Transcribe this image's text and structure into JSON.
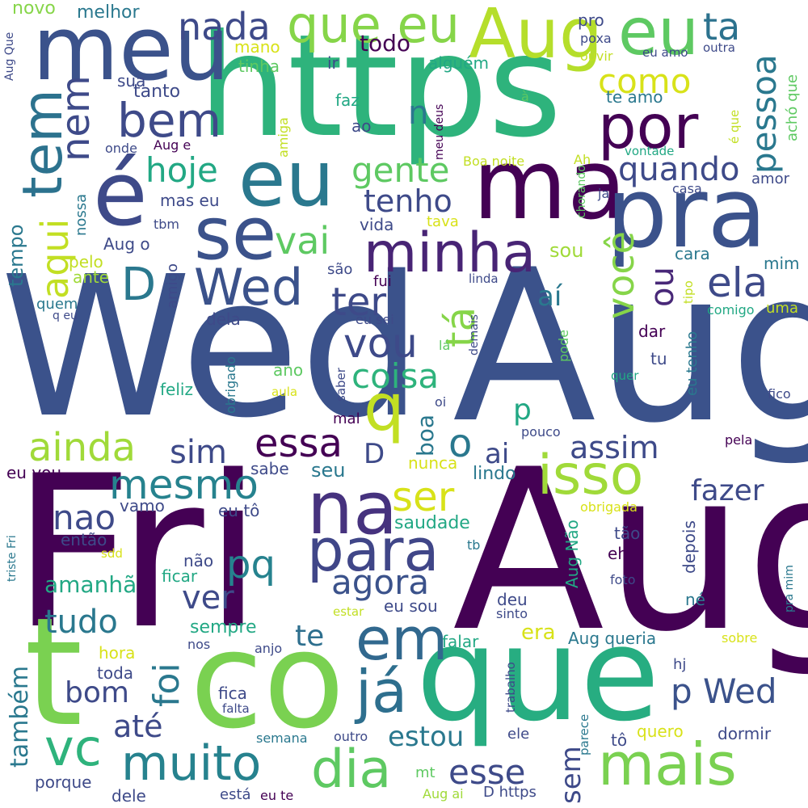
{
  "words": [
    {
      "text": "Wed",
      "color": "#3b528b"
    },
    {
      "text": "Aug",
      "color": "#3b528b"
    },
    {
      "text": "Fri",
      "color": "#440154"
    },
    {
      "text": "Aug",
      "color": "#440154"
    },
    {
      "text": "https",
      "color": "#2eb37c"
    },
    {
      "text": "t",
      "color": "#7ad151"
    },
    {
      "text": "co",
      "color": "#7ad151"
    },
    {
      "text": "que",
      "color": "#27ad81"
    },
    {
      "text": "meu",
      "color": "#3b528b"
    },
    {
      "text": "ma",
      "color": "#440154"
    },
    {
      "text": "pra",
      "color": "#3b528b"
    },
    {
      "text": "é",
      "color": "#3e4a89"
    },
    {
      "text": "eu",
      "color": "#2a788e"
    },
    {
      "text": "Aug",
      "color": "#b5de2b"
    },
    {
      "text": "eu",
      "color": "#5ec962"
    },
    {
      "text": "se",
      "color": "#3b528b"
    },
    {
      "text": "que eu",
      "color": "#86d549"
    },
    {
      "text": "por",
      "color": "#440154"
    },
    {
      "text": "tem",
      "color": "#2c728e"
    },
    {
      "text": "na",
      "color": "#46327e"
    },
    {
      "text": "isso",
      "color": "#a0da39"
    },
    {
      "text": "para",
      "color": "#404688"
    },
    {
      "text": "minha",
      "color": "#482475"
    },
    {
      "text": "Wed",
      "color": "#3b528b"
    },
    {
      "text": "em",
      "color": "#31688e"
    },
    {
      "text": "já",
      "color": "#2e6f8e"
    },
    {
      "text": "mais",
      "color": "#7ad151"
    },
    {
      "text": "muito",
      "color": "#26828e"
    },
    {
      "text": "dia",
      "color": "#5ec962"
    },
    {
      "text": "vc",
      "color": "#2eb37c"
    },
    {
      "text": "q",
      "color": "#c2df23"
    },
    {
      "text": "bem",
      "color": "#3e4a89"
    },
    {
      "text": "nem",
      "color": "#3e4a89"
    },
    {
      "text": "nada",
      "color": "#3e4a89"
    },
    {
      "text": "aqui",
      "color": "#c2df23"
    },
    {
      "text": "ta",
      "color": "#2c728e"
    },
    {
      "text": "pessoa",
      "color": "#2a788e"
    },
    {
      "text": "como",
      "color": "#d8e219"
    },
    {
      "text": "hoje",
      "color": "#22a884"
    },
    {
      "text": "quando",
      "color": "#3e4a89"
    },
    {
      "text": "gente",
      "color": "#5ec962"
    },
    {
      "text": "tenho",
      "color": "#3e4a89"
    },
    {
      "text": "vai",
      "color": "#5ec962"
    },
    {
      "text": "você",
      "color": "#86d549"
    },
    {
      "text": "ela",
      "color": "#3e4a89"
    },
    {
      "text": "D",
      "color": "#2a788e"
    },
    {
      "text": "ter",
      "color": "#3e4a89"
    },
    {
      "text": "tá",
      "color": "#86d549"
    },
    {
      "text": "ou",
      "color": "#482878"
    },
    {
      "text": "vou",
      "color": "#3e4a89"
    },
    {
      "text": "coisa",
      "color": "#2eb37c"
    },
    {
      "text": "ainda",
      "color": "#a0da39"
    },
    {
      "text": "essa",
      "color": "#440154"
    },
    {
      "text": "sim",
      "color": "#3e4a89"
    },
    {
      "text": "o",
      "color": "#2a788e"
    },
    {
      "text": "assim",
      "color": "#3e4a89"
    },
    {
      "text": "mesmo",
      "color": "#26828e"
    },
    {
      "text": "ser",
      "color": "#d8e219"
    },
    {
      "text": "fazer",
      "color": "#3e4a89"
    },
    {
      "text": "nao",
      "color": "#3e4a89"
    },
    {
      "text": "pq",
      "color": "#26828e"
    },
    {
      "text": "agora",
      "color": "#3b528b"
    },
    {
      "text": "ver",
      "color": "#3e4a89"
    },
    {
      "text": "tudo",
      "color": "#2a788e"
    },
    {
      "text": "amanhã",
      "color": "#22a884"
    },
    {
      "text": "foi",
      "color": "#2a788e"
    },
    {
      "text": "te",
      "color": "#2e6f8e"
    },
    {
      "text": "bom",
      "color": "#3e4a89"
    },
    {
      "text": "até",
      "color": "#3e4a89"
    },
    {
      "text": "também",
      "color": "#2a788e"
    },
    {
      "text": "p Wed",
      "color": "#3b528b"
    },
    {
      "text": "estou",
      "color": "#2a788e"
    },
    {
      "text": "esse",
      "color": "#3e4a89"
    },
    {
      "text": "sem",
      "color": "#3e4a89"
    },
    {
      "text": "n",
      "color": "#2a788e"
    },
    {
      "text": "p",
      "color": "#22a884"
    },
    {
      "text": "ai",
      "color": "#3e4a89"
    },
    {
      "text": "aí",
      "color": "#2a788e"
    },
    {
      "text": "boa",
      "color": "#2a788e"
    },
    {
      "text": "D",
      "color": "#3e4a89"
    },
    {
      "text": "todo",
      "color": "#440154"
    },
    {
      "text": "novo",
      "color": "#86d549"
    },
    {
      "text": "melhor",
      "color": "#2a788e"
    },
    {
      "text": "pro",
      "color": "#3e4a89"
    },
    {
      "text": "poxa",
      "color": "#3e4a89"
    },
    {
      "text": "mano",
      "color": "#d8e219"
    },
    {
      "text": "tinha",
      "color": "#5ec962"
    },
    {
      "text": "ir",
      "color": "#3e4a89"
    },
    {
      "text": "alguém",
      "color": "#22a884"
    },
    {
      "text": "ouvir",
      "color": "#c2df23"
    },
    {
      "text": "eu amo",
      "color": "#3e4a89"
    },
    {
      "text": "outra",
      "color": "#3e4a89"
    },
    {
      "text": "Aug Que",
      "color": "#3e4a89"
    },
    {
      "text": "sua",
      "color": "#3e4a89"
    },
    {
      "text": "tanto",
      "color": "#3e4a89"
    },
    {
      "text": "faz",
      "color": "#22a884"
    },
    {
      "text": "te amo",
      "color": "#2a788e"
    },
    {
      "text": "achó que",
      "color": "#5ec962"
    },
    {
      "text": "à",
      "color": "#5ec962"
    },
    {
      "text": "é que",
      "color": "#c2df23"
    },
    {
      "text": "ao",
      "color": "#3e4a89"
    },
    {
      "text": "meu deus",
      "color": "#440154"
    },
    {
      "text": "amiga",
      "color": "#c2df23"
    },
    {
      "text": "onde",
      "color": "#3e4a89"
    },
    {
      "text": "Aug e",
      "color": "#440154"
    },
    {
      "text": "Boa noite",
      "color": "#c2df23"
    },
    {
      "text": "Ah",
      "color": "#c2df23"
    },
    {
      "text": "vontade",
      "color": "#22a884"
    },
    {
      "text": "chorando",
      "color": "#5ec962"
    },
    {
      "text": "amor",
      "color": "#3e4a89"
    },
    {
      "text": "casa",
      "color": "#3e4a89"
    },
    {
      "text": "ja",
      "color": "#3e4a89"
    },
    {
      "text": "mas eu",
      "color": "#3e4a89"
    },
    {
      "text": "tempo",
      "color": "#2a788e"
    },
    {
      "text": "nossa",
      "color": "#2a788e"
    },
    {
      "text": "tbm",
      "color": "#3e4a89"
    },
    {
      "text": "vida",
      "color": "#3e4a89"
    },
    {
      "text": "tava",
      "color": "#d8e219"
    },
    {
      "text": "Aug o",
      "color": "#3e4a89"
    },
    {
      "text": "sou",
      "color": "#a0da39"
    },
    {
      "text": "pelo",
      "color": "#c2df23"
    },
    {
      "text": "amigo",
      "color": "#3e4a89"
    },
    {
      "text": "cara",
      "color": "#2a788e"
    },
    {
      "text": "mim",
      "color": "#2a788e"
    },
    {
      "text": "ante",
      "color": "#a0da39"
    },
    {
      "text": "são",
      "color": "#3e4a89"
    },
    {
      "text": "fui",
      "color": "#440154"
    },
    {
      "text": "linda",
      "color": "#3e4a89"
    },
    {
      "text": "quem",
      "color": "#2a788e"
    },
    {
      "text": "q eu",
      "color": "#3e4a89"
    },
    {
      "text": "tipo",
      "color": "#c2df23"
    },
    {
      "text": "comigo",
      "color": "#22a884"
    },
    {
      "text": "uma",
      "color": "#c2df23"
    },
    {
      "text": "dela",
      "color": "#3e4a89"
    },
    {
      "text": "eu sei",
      "color": "#3e4a89"
    },
    {
      "text": "demais",
      "color": "#3e4a89"
    },
    {
      "text": "pode",
      "color": "#5ec962"
    },
    {
      "text": "obrigado",
      "color": "#2a788e"
    },
    {
      "text": "lá",
      "color": "#5ec962"
    },
    {
      "text": "dar",
      "color": "#440154"
    },
    {
      "text": "tu",
      "color": "#3e4a89"
    },
    {
      "text": "eu tenho",
      "color": "#2a788e"
    },
    {
      "text": "ano",
      "color": "#5ec962"
    },
    {
      "text": "saber",
      "color": "#3e4a89"
    },
    {
      "text": "quer",
      "color": "#22a884"
    },
    {
      "text": "feliz",
      "color": "#22a884"
    },
    {
      "text": "aula",
      "color": "#d8e219"
    },
    {
      "text": "oi",
      "color": "#3e4a89"
    },
    {
      "text": "fico",
      "color": "#3e4a89"
    },
    {
      "text": "mal",
      "color": "#440154"
    },
    {
      "text": "pouco",
      "color": "#3e4a89"
    },
    {
      "text": "pela",
      "color": "#440154"
    },
    {
      "text": "eu vou",
      "color": "#440154"
    },
    {
      "text": "seu",
      "color": "#2a788e"
    },
    {
      "text": "sabe",
      "color": "#3e4a89"
    },
    {
      "text": "nunca",
      "color": "#d8e219"
    },
    {
      "text": "lindo",
      "color": "#2a788e"
    },
    {
      "text": "vamo",
      "color": "#3e4a89"
    },
    {
      "text": "eu tô",
      "color": "#3e4a89"
    },
    {
      "text": "saudade",
      "color": "#22a884"
    },
    {
      "text": "obrigada",
      "color": "#d8e219"
    },
    {
      "text": "depois",
      "color": "#3e4a89"
    },
    {
      "text": "então",
      "color": "#3e4a89"
    },
    {
      "text": "Aug Não",
      "color": "#22a884"
    },
    {
      "text": "tão",
      "color": "#3e4a89"
    },
    {
      "text": "triste Fri",
      "color": "#2a788e"
    },
    {
      "text": "sdd",
      "color": "#d8e219"
    },
    {
      "text": "tb",
      "color": "#2a788e"
    },
    {
      "text": "eh",
      "color": "#440154"
    },
    {
      "text": "pra mim",
      "color": "#2a788e"
    },
    {
      "text": "não",
      "color": "#3e4a89"
    },
    {
      "text": "ficar",
      "color": "#22a884"
    },
    {
      "text": "foto",
      "color": "#3e4a89"
    },
    {
      "text": "deu",
      "color": "#3e4a89"
    },
    {
      "text": "né",
      "color": "#2a788e"
    },
    {
      "text": "sempre",
      "color": "#22a884"
    },
    {
      "text": "estar",
      "color": "#c2df23"
    },
    {
      "text": "eu sou",
      "color": "#3e4a89"
    },
    {
      "text": "sinto",
      "color": "#3e4a89"
    },
    {
      "text": "era",
      "color": "#d8e219"
    },
    {
      "text": "Aug queria",
      "color": "#2a788e"
    },
    {
      "text": "hora",
      "color": "#d8e219"
    },
    {
      "text": "nos",
      "color": "#3e4a89"
    },
    {
      "text": "anjo",
      "color": "#3e4a89"
    },
    {
      "text": "falar",
      "color": "#22a884"
    },
    {
      "text": "sobre",
      "color": "#d8e219"
    },
    {
      "text": "toda",
      "color": "#3e4a89"
    },
    {
      "text": "trabalho",
      "color": "#3e4a89"
    },
    {
      "text": "hj",
      "color": "#3e4a89"
    },
    {
      "text": "fica",
      "color": "#3e4a89"
    },
    {
      "text": "falta",
      "color": "#3e4a89"
    },
    {
      "text": "parece",
      "color": "#2a788e"
    },
    {
      "text": "quero",
      "color": "#d8e219"
    },
    {
      "text": "dormir",
      "color": "#3e4a89"
    },
    {
      "text": "ele",
      "color": "#3e4a89"
    },
    {
      "text": "tô",
      "color": "#3e4a89"
    },
    {
      "text": "semana",
      "color": "#2a788e"
    },
    {
      "text": "outro",
      "color": "#3e4a89"
    },
    {
      "text": "porque",
      "color": "#3e4a89"
    },
    {
      "text": "mt",
      "color": "#5ec962"
    },
    {
      "text": "dele",
      "color": "#3e4a89"
    },
    {
      "text": "está",
      "color": "#3e4a89"
    },
    {
      "text": "eu te",
      "color": "#440154"
    },
    {
      "text": "Aug ai",
      "color": "#a0da39"
    },
    {
      "text": "D https",
      "color": "#3e4a89"
    }
  ]
}
